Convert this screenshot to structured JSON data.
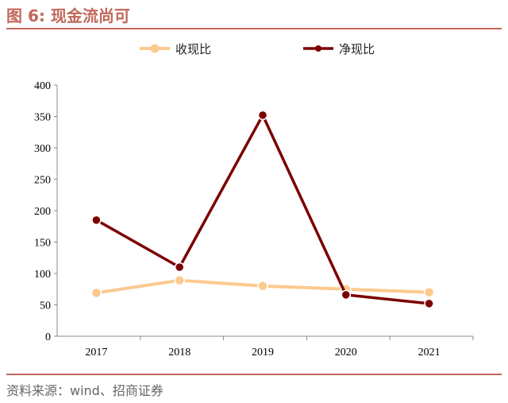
{
  "header": {
    "title": "图 6:  现金流尚可"
  },
  "footer": {
    "source": "资料来源：wind、招商证券"
  },
  "colors": {
    "accent": "#c0685a",
    "series1": "#fcc98f",
    "series2": "#7b0000"
  },
  "chart_data": {
    "type": "line",
    "title": "",
    "xlabel": "",
    "ylabel": "",
    "categories": [
      "2017",
      "2018",
      "2019",
      "2020",
      "2021"
    ],
    "ylim": [
      0,
      400
    ],
    "yticks": [
      "0",
      "50",
      "100",
      "150",
      "200",
      "250",
      "300",
      "350",
      "400"
    ],
    "grid": false,
    "legend_position": "top-center",
    "series": [
      {
        "name": "收现比",
        "values": [
          69,
          89,
          80,
          75,
          70
        ]
      },
      {
        "name": "净现比",
        "values": [
          185,
          110,
          352,
          66,
          52
        ]
      }
    ]
  }
}
